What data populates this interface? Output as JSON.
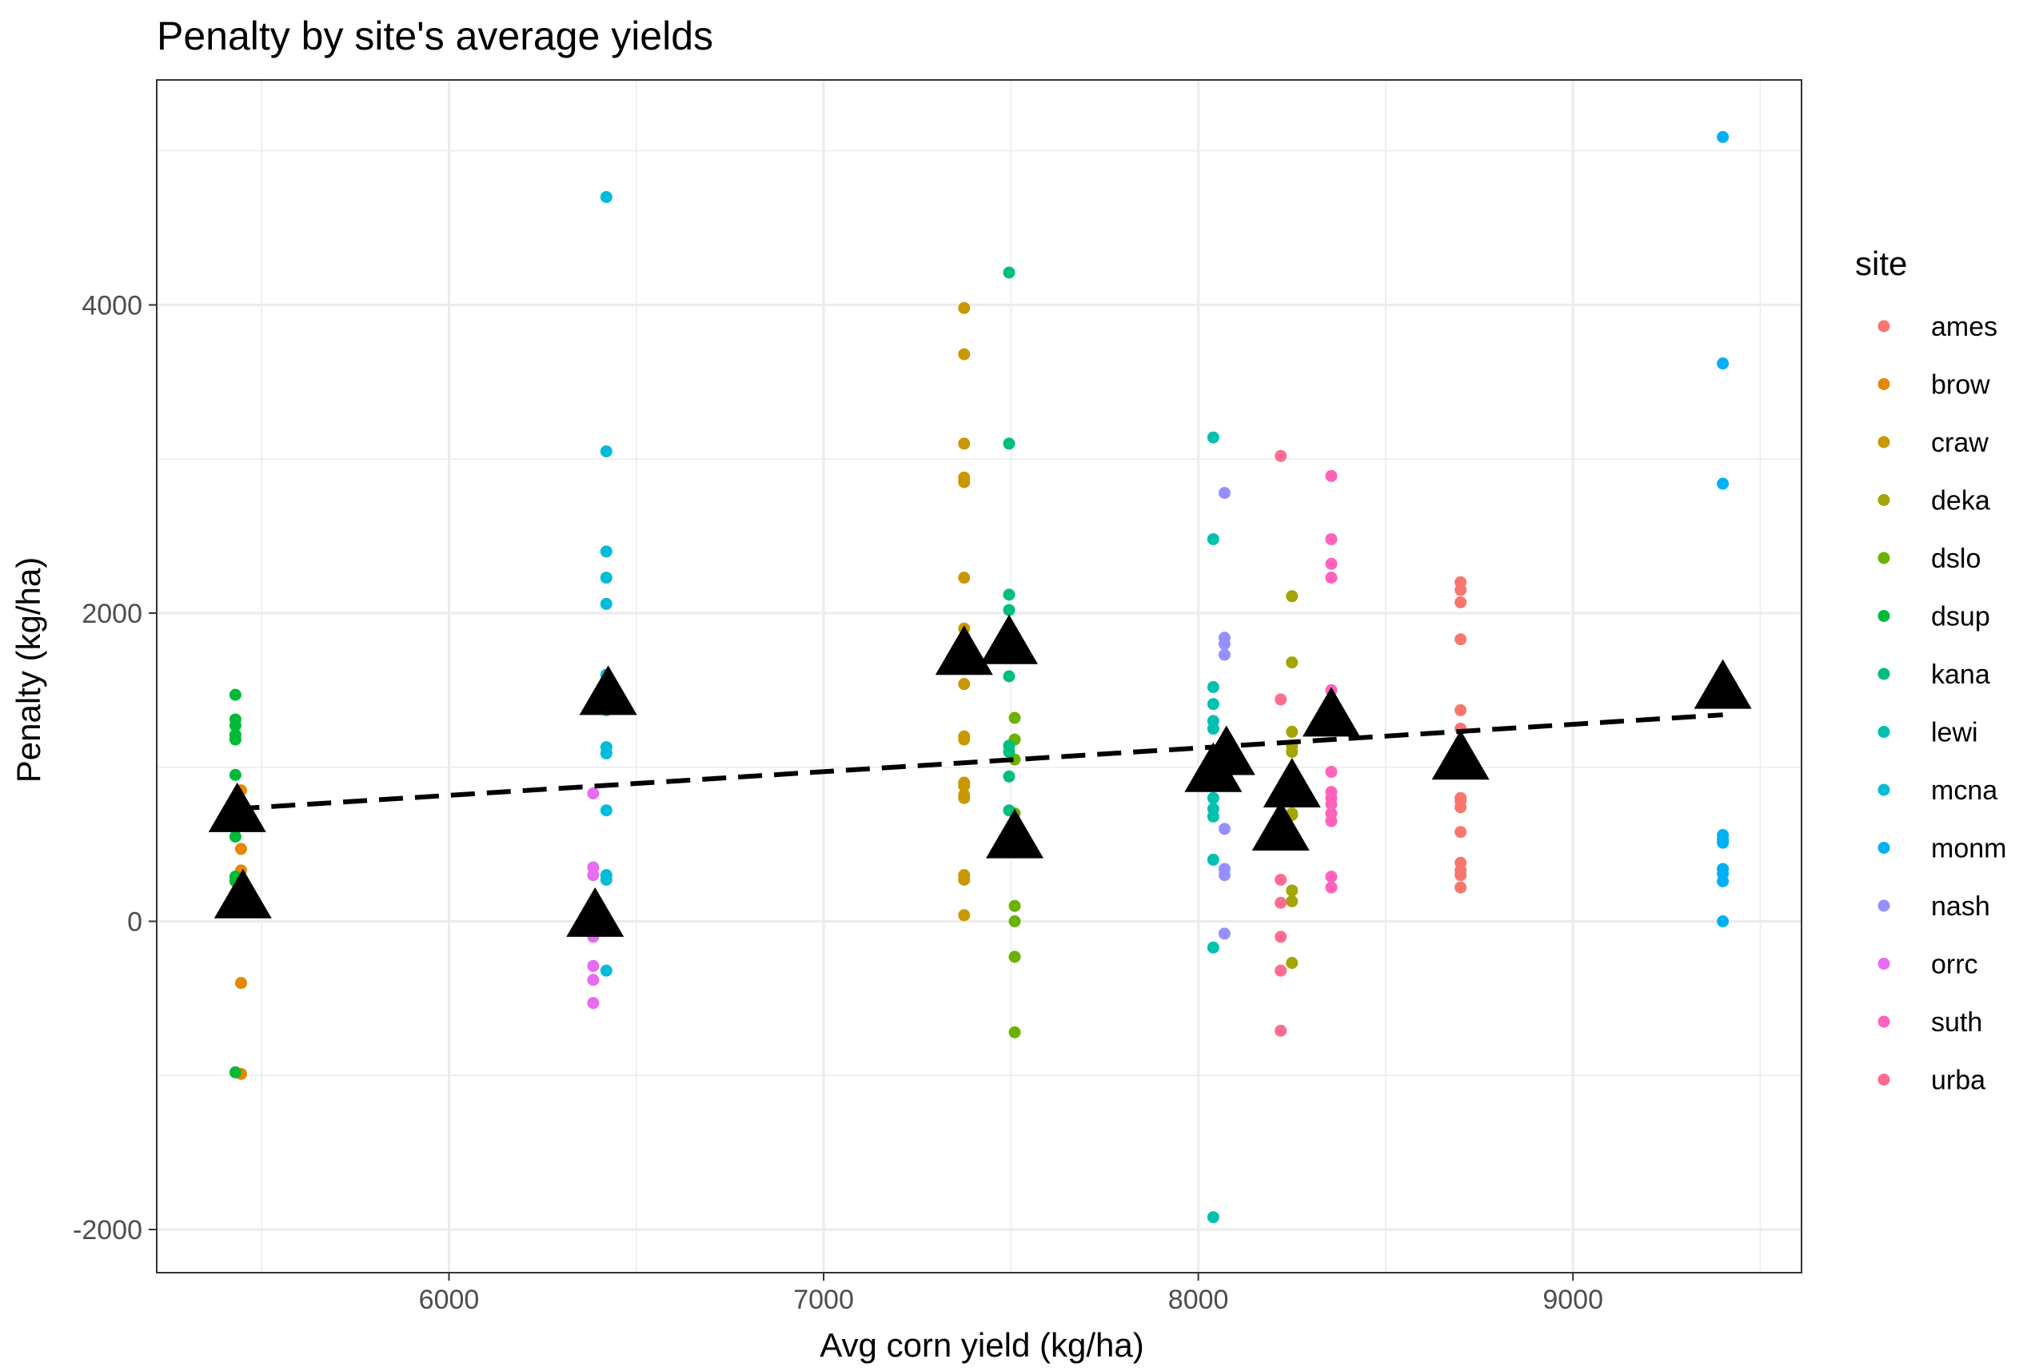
{
  "chart_data": {
    "type": "scatter",
    "title": "Penalty by site's average yields",
    "xlabel": "Avg corn yield (kg/ha)",
    "ylabel": "Penalty (kg/ha)",
    "xlim": [
      5220,
      9610
    ],
    "ylim": [
      -2280,
      5460
    ],
    "x_ticks": [
      6000,
      7000,
      8000,
      9000
    ],
    "x_tick_labels": [
      "6000",
      "7000",
      "8000",
      "9000"
    ],
    "y_ticks": [
      -2000,
      0,
      2000,
      4000
    ],
    "y_tick_labels": [
      "-2000",
      "0",
      "2000",
      "4000"
    ],
    "grid": true,
    "legend_title": "site",
    "legend_position": "right",
    "series": [
      {
        "name": "ames",
        "color": "#F8766D",
        "x": 8700,
        "values": [
          2200,
          2150,
          2070,
          1830,
          1370,
          1250,
          800,
          780,
          740,
          580,
          380,
          330,
          300,
          220
        ]
      },
      {
        "name": "brow",
        "color": "#E58700",
        "x": 5445,
        "values": [
          850,
          470,
          330,
          -400,
          -990
        ]
      },
      {
        "name": "craw",
        "color": "#C99800",
        "x": 7375,
        "values": [
          3980,
          3680,
          3100,
          2880,
          2850,
          2230,
          1900,
          1650,
          1540,
          1200,
          1180,
          900,
          880,
          820,
          800,
          300,
          270,
          40
        ]
      },
      {
        "name": "deka",
        "color": "#A3A500",
        "x": 8250,
        "values": [
          2110,
          1680,
          1230,
          1140,
          1100,
          850,
          700,
          690,
          200,
          130,
          -270
        ]
      },
      {
        "name": "dslo",
        "color": "#6BB100",
        "x": 7510,
        "values": [
          1320,
          1180,
          1050,
          700,
          450,
          100,
          0,
          -230,
          -720
        ]
      },
      {
        "name": "dsup",
        "color": "#00BA38",
        "x": 5430,
        "values": [
          1470,
          1310,
          1270,
          1210,
          1180,
          950,
          550,
          290,
          260,
          -980
        ]
      },
      {
        "name": "kana",
        "color": "#00BF7D",
        "x": 7495,
        "values": [
          4210,
          3100,
          2120,
          2020,
          1590,
          1140,
          1100,
          940,
          720
        ]
      },
      {
        "name": "lewi",
        "color": "#00C0AF",
        "x": 8040,
        "values": [
          3140,
          2480,
          1520,
          1410,
          1300,
          1250,
          1000,
          900,
          800,
          730,
          680,
          400,
          -170,
          -1920
        ]
      },
      {
        "name": "mcna",
        "color": "#00BCD8",
        "x": 6420,
        "values": [
          4700,
          3050,
          2400,
          2230,
          2060,
          1600,
          1370,
          1130,
          1090,
          720,
          300,
          270,
          -320
        ]
      },
      {
        "name": "monm",
        "color": "#00B0F6",
        "x": 9400,
        "values": [
          5090,
          3620,
          2840,
          560,
          530,
          510,
          340,
          310,
          260,
          0
        ]
      },
      {
        "name": "nash",
        "color": "#9590FF",
        "x": 8070,
        "values": [
          2780,
          1840,
          1800,
          1730,
          1000,
          900,
          600,
          340,
          300,
          -80
        ]
      },
      {
        "name": "orrc",
        "color": "#E76BF3",
        "x": 6385,
        "values": [
          830,
          350,
          300,
          100,
          0,
          -70,
          -100,
          -290,
          -380,
          -530
        ]
      },
      {
        "name": "suth",
        "color": "#FF62BC",
        "x": 8355,
        "values": [
          2890,
          2480,
          2320,
          2230,
          1500,
          970,
          840,
          800,
          760,
          700,
          650,
          290,
          220
        ]
      },
      {
        "name": "urba",
        "color": "#FF6C90",
        "x": 8220,
        "values": [
          3020,
          1440,
          700,
          640,
          270,
          120,
          -100,
          -320,
          -710
        ]
      }
    ],
    "site_means": {
      "marker": "triangle",
      "color": "#000000",
      "points": [
        {
          "x": 5435,
          "y": 740
        },
        {
          "x": 5450,
          "y": 180
        },
        {
          "x": 6390,
          "y": 60
        },
        {
          "x": 6425,
          "y": 1500
        },
        {
          "x": 7375,
          "y": 1760
        },
        {
          "x": 7495,
          "y": 1830
        },
        {
          "x": 7510,
          "y": 570
        },
        {
          "x": 8040,
          "y": 1000
        },
        {
          "x": 8075,
          "y": 1110
        },
        {
          "x": 8220,
          "y": 620
        },
        {
          "x": 8250,
          "y": 900
        },
        {
          "x": 8355,
          "y": 1360
        },
        {
          "x": 8700,
          "y": 1080
        },
        {
          "x": 9400,
          "y": 1540
        }
      ]
    },
    "trend_line": {
      "style": "dashed",
      "color": "#000000",
      "x": [
        5430,
        9400
      ],
      "y": [
        730,
        1340
      ]
    }
  }
}
